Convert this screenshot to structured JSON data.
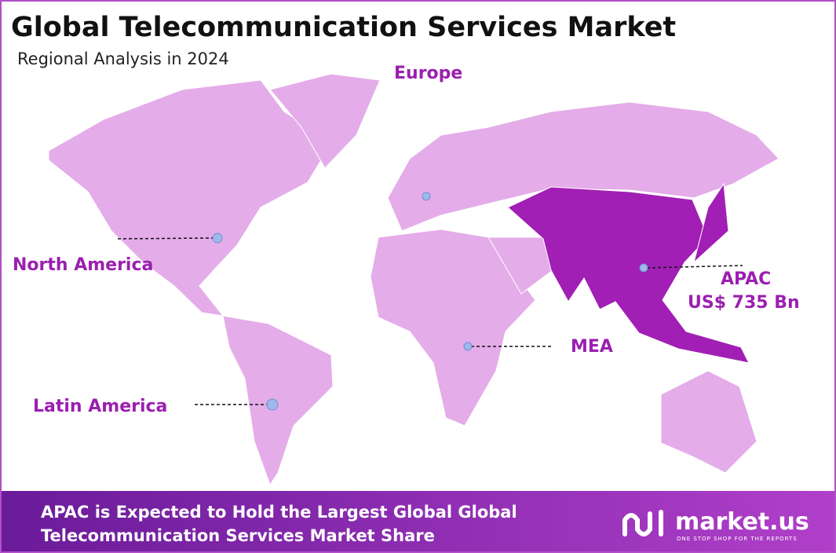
{
  "header": {
    "title": "Global Telecommunication Services Market",
    "subtitle": "Regional Analysis in 2024"
  },
  "regions": [
    {
      "name": "Europe"
    },
    {
      "name": "North America"
    },
    {
      "name": "APAC",
      "value_label": "US$ 735 Bn"
    },
    {
      "name": "MEA"
    },
    {
      "name": "Latin America"
    }
  ],
  "footer": {
    "lines": [
      "APAC is Expected to Hold the Largest Global Global",
      "Telecommunication  Services Market Share"
    ],
    "logo": "market.us",
    "tagline": "ONE STOP SHOP FOR THE REPORTS"
  }
}
